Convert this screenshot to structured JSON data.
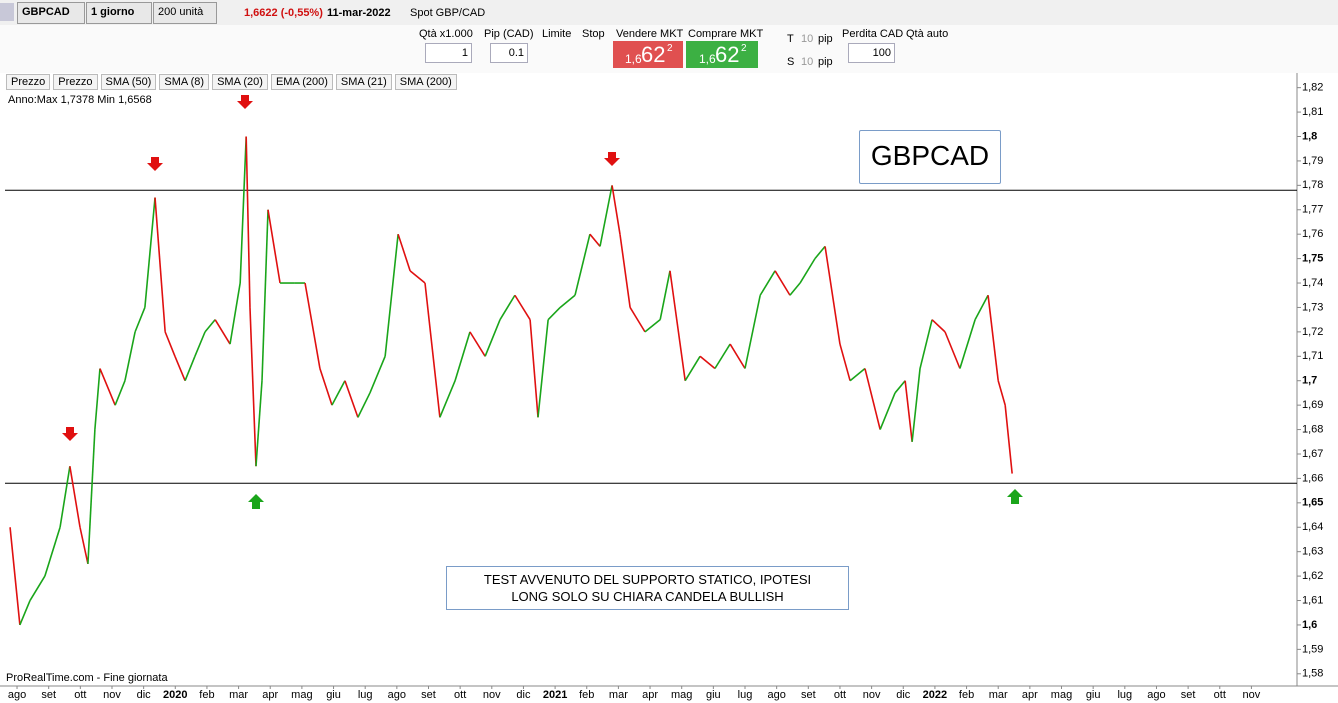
{
  "toolbar": {
    "symbol": "GBPCAD",
    "timeframe": "1 giorno",
    "units": "200 unità",
    "price": "1,6622 (-0,55%)",
    "date": "11-mar-2022",
    "instrument": "Spot GBP/CAD"
  },
  "order_panel": {
    "qty_label": "Qtà x1.000",
    "qty": "1",
    "pip_label": "Pip (CAD)",
    "pip": "0.1",
    "limit": "Limite",
    "stop": "Stop",
    "sell_label": "Vendere MKT",
    "sell_prefix": "1,6",
    "sell_big": "62",
    "sell_sup": "2",
    "buy_label": "Comprare MKT",
    "buy_prefix": "1,6",
    "buy_big": "62",
    "buy_sup": "2",
    "t": "T",
    "t_value": "10",
    "t_unit": "pip",
    "s": "S",
    "s_value": "10",
    "s_unit": "pip",
    "loss_label": "Perdita CAD",
    "loss": "100",
    "qty_auto": "Qtà auto"
  },
  "indicators": [
    "Prezzo",
    "Prezzo",
    "SMA (50)",
    "SMA (8)",
    "SMA (20)",
    "EMA (200)",
    "SMA (21)",
    "SMA (200)"
  ],
  "chart_data": {
    "type": "candlestick",
    "title": "GBPCAD",
    "range_label": "Anno:Max 1,7378 Min 1,6568",
    "source": "ProRealTime.com - Fine giornata",
    "annotation": "TEST AVVENUTO DEL SUPPORTO STATICO, IPOTESI LONG SOLO SU CHIARA CANDELA BULLISH",
    "up_color": "#1aa51a",
    "down_color": "#e01010",
    "x": [
      -0.22,
      0.09,
      0.41,
      0.88,
      1.36,
      1.67,
      1.99,
      2.24,
      2.46,
      2.62,
      3.1,
      3.41,
      3.73,
      4.04,
      4.36,
      4.68,
      4.99,
      5.31,
      5.62,
      5.94,
      6.26,
      6.73,
      7.05,
      7.24,
      7.36,
      7.55,
      7.74,
      7.93,
      8.31,
      8.78,
      9.1,
      9.57,
      9.95,
      10.36,
      10.77,
      11.15,
      11.63,
      12.04,
      12.42,
      12.89,
      13.36,
      13.84,
      14.31,
      14.79,
      15.26,
      15.73,
      16.21,
      16.46,
      16.78,
      17.16,
      17.63,
      18.1,
      18.42,
      18.8,
      19.05,
      19.37,
      19.84,
      20.32,
      20.63,
      21.11,
      21.58,
      22.05,
      22.53,
      23.0,
      23.48,
      23.95,
      24.42,
      24.74,
      25.21,
      25.53,
      26.0,
      26.32,
      26.79,
      27.27,
      27.74,
      28.06,
      28.28,
      28.53,
      28.91,
      29.32,
      29.79,
      30.27,
      30.68,
      31.0,
      31.22,
      31.44
    ],
    "values": [
      1.64,
      1.6,
      1.61,
      1.62,
      1.64,
      1.665,
      1.64,
      1.625,
      1.68,
      1.705,
      1.69,
      1.7,
      1.72,
      1.73,
      1.775,
      1.72,
      1.71,
      1.7,
      1.71,
      1.72,
      1.725,
      1.715,
      1.74,
      1.8,
      1.73,
      1.665,
      1.7,
      1.77,
      1.74,
      1.74,
      1.74,
      1.705,
      1.69,
      1.7,
      1.685,
      1.695,
      1.71,
      1.76,
      1.745,
      1.74,
      1.685,
      1.7,
      1.72,
      1.71,
      1.725,
      1.735,
      1.725,
      1.685,
      1.725,
      1.73,
      1.735,
      1.76,
      1.755,
      1.78,
      1.76,
      1.73,
      1.72,
      1.725,
      1.745,
      1.7,
      1.71,
      1.705,
      1.715,
      1.705,
      1.735,
      1.745,
      1.735,
      1.74,
      1.75,
      1.755,
      1.715,
      1.7,
      1.705,
      1.68,
      1.695,
      1.7,
      1.675,
      1.705,
      1.725,
      1.72,
      1.705,
      1.725,
      1.735,
      1.7,
      1.69,
      1.662
    ],
    "hlines": [
      1.778,
      1.658
    ],
    "xlim": [
      -0.38,
      40.44
    ],
    "ylim": [
      1.575,
      1.826
    ],
    "yticks": [
      {
        "value": 1.58,
        "label": "1,58"
      },
      {
        "value": 1.59,
        "label": "1,59"
      },
      {
        "value": 1.6,
        "label": "1,6"
      },
      {
        "value": 1.61,
        "label": "1,61"
      },
      {
        "value": 1.62,
        "label": "1,62"
      },
      {
        "value": 1.63,
        "label": "1,63"
      },
      {
        "value": 1.64,
        "label": "1,64"
      },
      {
        "value": 1.65,
        "label": "1,65"
      },
      {
        "value": 1.66,
        "label": "1,66"
      },
      {
        "value": 1.67,
        "label": "1,67"
      },
      {
        "value": 1.68,
        "label": "1,68"
      },
      {
        "value": 1.69,
        "label": "1,69"
      },
      {
        "value": 1.7,
        "label": "1,7"
      },
      {
        "value": 1.71,
        "label": "1,71"
      },
      {
        "value": 1.72,
        "label": "1,72"
      },
      {
        "value": 1.73,
        "label": "1,73"
      },
      {
        "value": 1.74,
        "label": "1,74"
      },
      {
        "value": 1.75,
        "label": "1,75"
      },
      {
        "value": 1.76,
        "label": "1,76"
      },
      {
        "value": 1.77,
        "label": "1,77"
      },
      {
        "value": 1.78,
        "label": "1,78"
      },
      {
        "value": 1.79,
        "label": "1,79"
      },
      {
        "value": 1.8,
        "label": "1,8"
      },
      {
        "value": 1.81,
        "label": "1,81"
      },
      {
        "value": 1.82,
        "label": "1,82"
      }
    ],
    "xticks": [
      {
        "value": 0,
        "label": "ago"
      },
      {
        "value": 1,
        "label": "set"
      },
      {
        "value": 2,
        "label": "ott"
      },
      {
        "value": 3,
        "label": "nov"
      },
      {
        "value": 4,
        "label": "dic"
      },
      {
        "value": 5,
        "label": "2020"
      },
      {
        "value": 6,
        "label": "feb"
      },
      {
        "value": 7,
        "label": "mar"
      },
      {
        "value": 8,
        "label": "apr"
      },
      {
        "value": 9,
        "label": "mag"
      },
      {
        "value": 10,
        "label": "giu"
      },
      {
        "value": 11,
        "label": "lug"
      },
      {
        "value": 12,
        "label": "ago"
      },
      {
        "value": 13,
        "label": "set"
      },
      {
        "value": 14,
        "label": "ott"
      },
      {
        "value": 15,
        "label": "nov"
      },
      {
        "value": 16,
        "label": "dic"
      },
      {
        "value": 17,
        "label": "2021"
      },
      {
        "value": 18,
        "label": "feb"
      },
      {
        "value": 19,
        "label": "mar"
      },
      {
        "value": 20,
        "label": "apr"
      },
      {
        "value": 21,
        "label": "mag"
      },
      {
        "value": 22,
        "label": "giu"
      },
      {
        "value": 23,
        "label": "lug"
      },
      {
        "value": 24,
        "label": "ago"
      },
      {
        "value": 25,
        "label": "set"
      },
      {
        "value": 26,
        "label": "ott"
      },
      {
        "value": 27,
        "label": "nov"
      },
      {
        "value": 28,
        "label": "dic"
      },
      {
        "value": 29,
        "label": "2022"
      },
      {
        "value": 30,
        "label": "feb"
      },
      {
        "value": 31,
        "label": "mar"
      },
      {
        "value": 32,
        "label": "apr"
      },
      {
        "value": 33,
        "label": "mag"
      },
      {
        "value": 34,
        "label": "giu"
      },
      {
        "value": 35,
        "label": "lug"
      },
      {
        "value": 36,
        "label": "ago"
      },
      {
        "value": 37,
        "label": "set"
      },
      {
        "value": 38,
        "label": "ott"
      },
      {
        "value": 39,
        "label": "nov"
      }
    ]
  }
}
